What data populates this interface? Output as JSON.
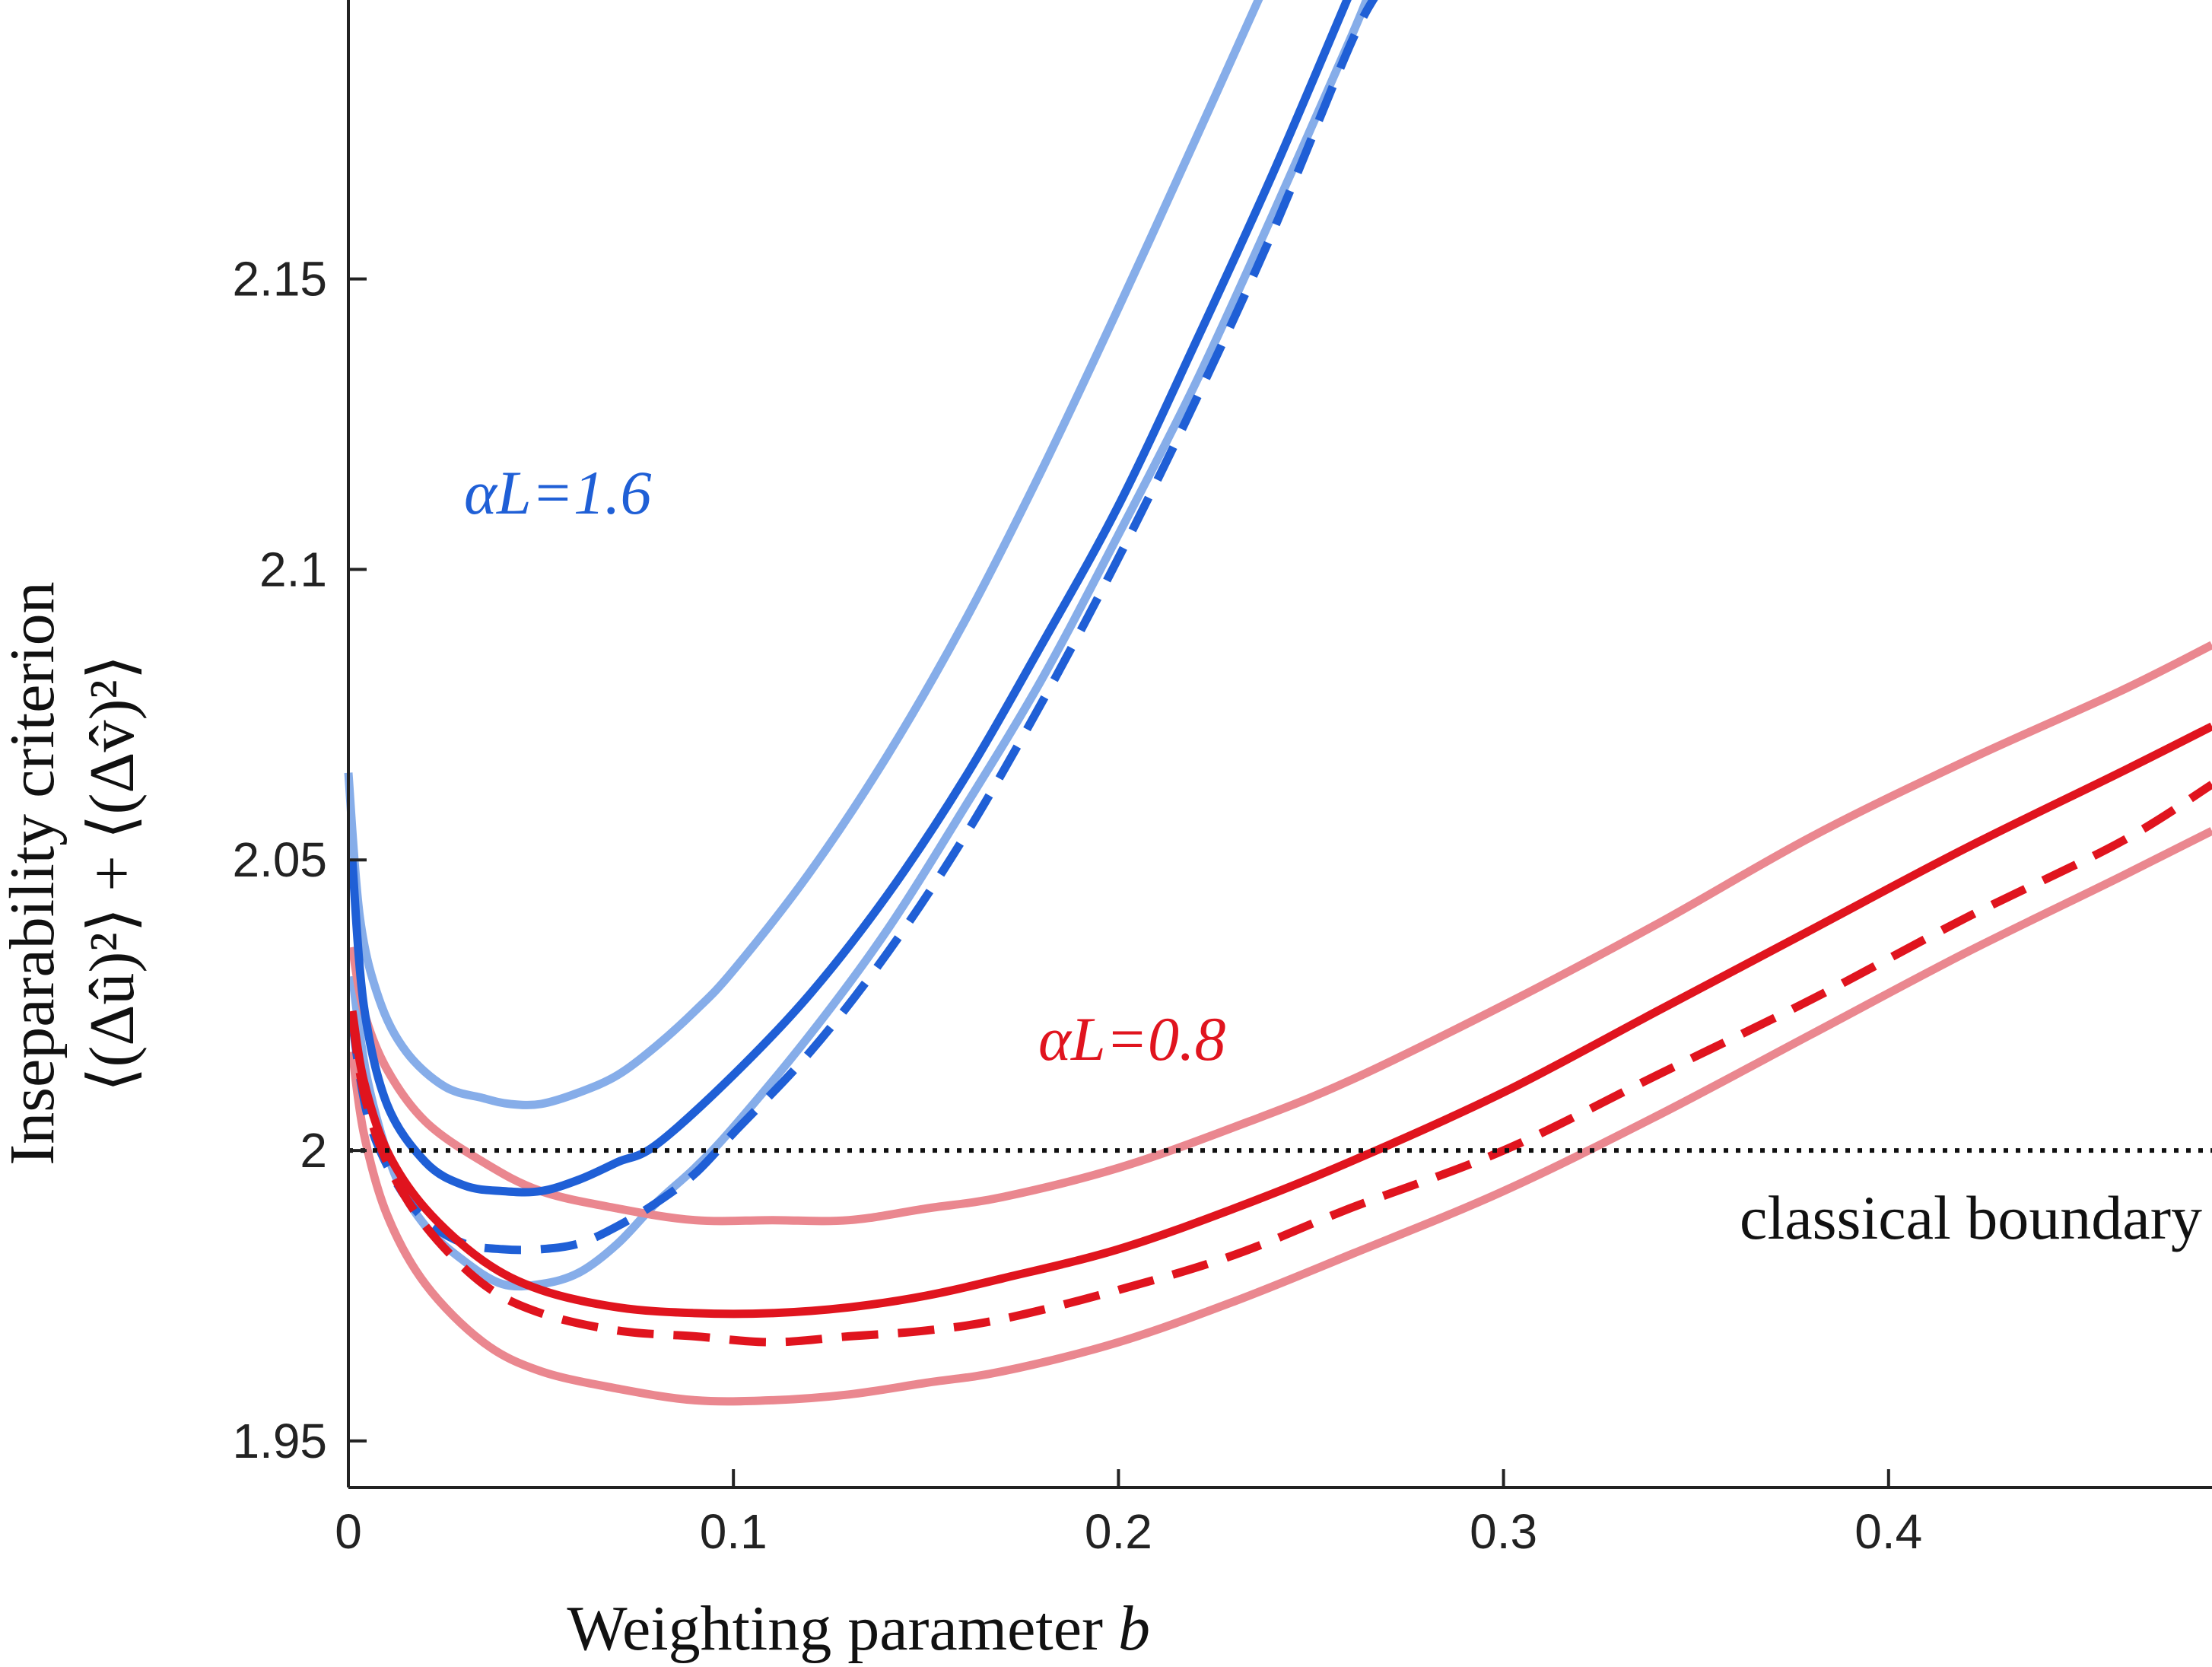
{
  "chart_data": {
    "type": "line",
    "xlabel": "Weighting parameter",
    "xlabel_var": "b",
    "ylabel_line1": "Inseparability criterion",
    "ylabel_line2": "⟨(Δû)²⟩ + ⟨(Δv̂)²⟩",
    "xlim": [
      0,
      0.484
    ],
    "ylim": [
      1.942,
      2.198
    ],
    "xticks": [
      0,
      0.1,
      0.2,
      0.3,
      0.4
    ],
    "xtick_labels": [
      "0",
      "0.1",
      "0.2",
      "0.3",
      "0.4"
    ],
    "yticks": [
      1.95,
      2.0,
      2.05,
      2.1,
      2.15
    ],
    "ytick_labels": [
      "1.95",
      "2",
      "2.05",
      "2.1",
      "2.15"
    ],
    "grid": false,
    "annotations": [
      {
        "text": "αL=1.6",
        "color": "#1f5fd6"
      },
      {
        "text": "αL=0.8",
        "color": "#e0141e"
      },
      {
        "text": "classical boundary",
        "color": "#111111"
      }
    ],
    "reference_line": {
      "y": 2.0,
      "style": "dotted",
      "color": "#111111"
    },
    "series": [
      {
        "group": "alphaL_1.6",
        "role": "upper",
        "color": "#86ade9",
        "dash": false,
        "points": [
          [
            0,
            2.065
          ],
          [
            0.003,
            2.04
          ],
          [
            0.008,
            2.026
          ],
          [
            0.015,
            2.017
          ],
          [
            0.025,
            2.011
          ],
          [
            0.035,
            2.009
          ],
          [
            0.042,
            2.008
          ],
          [
            0.05,
            2.008
          ],
          [
            0.06,
            2.01
          ],
          [
            0.07,
            2.013
          ],
          [
            0.08,
            2.018
          ],
          [
            0.09,
            2.024
          ],
          [
            0.1,
            2.031
          ],
          [
            0.12,
            2.048
          ],
          [
            0.14,
            2.068
          ],
          [
            0.16,
            2.091
          ],
          [
            0.18,
            2.117
          ],
          [
            0.2,
            2.145
          ],
          [
            0.22,
            2.174
          ],
          [
            0.237,
            2.199
          ]
        ]
      },
      {
        "group": "alphaL_1.6",
        "role": "center",
        "color": "#1f5fd6",
        "dash": false,
        "points": [
          [
            0.001,
            2.05
          ],
          [
            0.004,
            2.025
          ],
          [
            0.01,
            2.008
          ],
          [
            0.02,
            1.998
          ],
          [
            0.03,
            1.994
          ],
          [
            0.04,
            1.993
          ],
          [
            0.05,
            1.993
          ],
          [
            0.06,
            1.995
          ],
          [
            0.07,
            1.998
          ],
          [
            0.08,
            2.001
          ],
          [
            0.1,
            2.013
          ],
          [
            0.12,
            2.027
          ],
          [
            0.14,
            2.044
          ],
          [
            0.16,
            2.064
          ],
          [
            0.18,
            2.087
          ],
          [
            0.2,
            2.111
          ],
          [
            0.22,
            2.139
          ],
          [
            0.24,
            2.168
          ],
          [
            0.26,
            2.199
          ]
        ]
      },
      {
        "group": "alphaL_1.6",
        "role": "lower",
        "color": "#86ade9",
        "dash": false,
        "points": [
          [
            0.001,
            2.03
          ],
          [
            0.005,
            2.012
          ],
          [
            0.012,
            1.996
          ],
          [
            0.02,
            1.987
          ],
          [
            0.03,
            1.981
          ],
          [
            0.04,
            1.977
          ],
          [
            0.05,
            1.977
          ],
          [
            0.06,
            1.979
          ],
          [
            0.07,
            1.984
          ],
          [
            0.08,
            1.991
          ],
          [
            0.09,
            1.997
          ],
          [
            0.1,
            2.004
          ],
          [
            0.12,
            2.02
          ],
          [
            0.14,
            2.038
          ],
          [
            0.16,
            2.059
          ],
          [
            0.18,
            2.081
          ],
          [
            0.2,
            2.106
          ],
          [
            0.22,
            2.132
          ],
          [
            0.24,
            2.161
          ],
          [
            0.26,
            2.191
          ],
          [
            0.265,
            2.199
          ]
        ]
      },
      {
        "group": "alphaL_1.6",
        "role": "dashed",
        "color": "#1f5fd6",
        "dash": true,
        "points": [
          [
            0.001,
            2.022
          ],
          [
            0.005,
            2.006
          ],
          [
            0.012,
            1.995
          ],
          [
            0.02,
            1.988
          ],
          [
            0.03,
            1.984
          ],
          [
            0.04,
            1.983
          ],
          [
            0.05,
            1.983
          ],
          [
            0.06,
            1.984
          ],
          [
            0.07,
            1.987
          ],
          [
            0.08,
            1.991
          ],
          [
            0.09,
            1.996
          ],
          [
            0.1,
            2.003
          ],
          [
            0.12,
            2.017
          ],
          [
            0.14,
            2.034
          ],
          [
            0.16,
            2.054
          ],
          [
            0.18,
            2.077
          ],
          [
            0.2,
            2.102
          ],
          [
            0.22,
            2.129
          ],
          [
            0.24,
            2.158
          ],
          [
            0.26,
            2.19
          ],
          [
            0.267,
            2.199
          ]
        ]
      },
      {
        "group": "alphaL_0.8",
        "role": "upper",
        "color": "#ea878f",
        "dash": false,
        "points": [
          [
            0.001,
            2.035
          ],
          [
            0.004,
            2.024
          ],
          [
            0.01,
            2.014
          ],
          [
            0.02,
            2.005
          ],
          [
            0.035,
            1.998
          ],
          [
            0.05,
            1.993
          ],
          [
            0.07,
            1.99
          ],
          [
            0.09,
            1.988
          ],
          [
            0.11,
            1.988
          ],
          [
            0.13,
            1.988
          ],
          [
            0.15,
            1.99
          ],
          [
            0.17,
            1.992
          ],
          [
            0.2,
            1.997
          ],
          [
            0.23,
            2.004
          ],
          [
            0.26,
            2.012
          ],
          [
            0.3,
            2.025
          ],
          [
            0.34,
            2.039
          ],
          [
            0.38,
            2.054
          ],
          [
            0.42,
            2.067
          ],
          [
            0.46,
            2.079
          ],
          [
            0.484,
            2.087
          ]
        ]
      },
      {
        "group": "alphaL_0.8",
        "role": "center",
        "color": "#e0141e",
        "dash": false,
        "points": [
          [
            0.001,
            2.024
          ],
          [
            0.004,
            2.012
          ],
          [
            0.01,
            2.0
          ],
          [
            0.02,
            1.99
          ],
          [
            0.035,
            1.981
          ],
          [
            0.05,
            1.976
          ],
          [
            0.07,
            1.973
          ],
          [
            0.09,
            1.972
          ],
          [
            0.11,
            1.972
          ],
          [
            0.13,
            1.973
          ],
          [
            0.15,
            1.975
          ],
          [
            0.17,
            1.978
          ],
          [
            0.2,
            1.983
          ],
          [
            0.23,
            1.99
          ],
          [
            0.26,
            1.998
          ],
          [
            0.3,
            2.01
          ],
          [
            0.34,
            2.024
          ],
          [
            0.38,
            2.038
          ],
          [
            0.42,
            2.052
          ],
          [
            0.46,
            2.065
          ],
          [
            0.484,
            2.073
          ]
        ]
      },
      {
        "group": "alphaL_0.8",
        "role": "lower",
        "color": "#ea878f",
        "dash": false,
        "points": [
          [
            0.001,
            2.017
          ],
          [
            0.004,
            2.003
          ],
          [
            0.01,
            1.989
          ],
          [
            0.02,
            1.977
          ],
          [
            0.035,
            1.967
          ],
          [
            0.05,
            1.962
          ],
          [
            0.07,
            1.959
          ],
          [
            0.09,
            1.957
          ],
          [
            0.11,
            1.957
          ],
          [
            0.13,
            1.958
          ],
          [
            0.15,
            1.96
          ],
          [
            0.17,
            1.962
          ],
          [
            0.2,
            1.967
          ],
          [
            0.23,
            1.974
          ],
          [
            0.26,
            1.982
          ],
          [
            0.3,
            1.993
          ],
          [
            0.34,
            2.006
          ],
          [
            0.38,
            2.02
          ],
          [
            0.42,
            2.034
          ],
          [
            0.46,
            2.047
          ],
          [
            0.484,
            2.055
          ]
        ]
      },
      {
        "group": "alphaL_0.8",
        "role": "dashed",
        "color": "#e0141e",
        "dash": true,
        "points": [
          [
            0.001,
            2.023
          ],
          [
            0.004,
            2.01
          ],
          [
            0.01,
            1.998
          ],
          [
            0.02,
            1.987
          ],
          [
            0.035,
            1.977
          ],
          [
            0.05,
            1.972
          ],
          [
            0.07,
            1.969
          ],
          [
            0.09,
            1.968
          ],
          [
            0.11,
            1.967
          ],
          [
            0.13,
            1.968
          ],
          [
            0.15,
            1.969
          ],
          [
            0.17,
            1.971
          ],
          [
            0.2,
            1.976
          ],
          [
            0.23,
            1.982
          ],
          [
            0.26,
            1.99
          ],
          [
            0.3,
            2.0
          ],
          [
            0.34,
            2.013
          ],
          [
            0.38,
            2.026
          ],
          [
            0.42,
            2.04
          ],
          [
            0.46,
            2.053
          ],
          [
            0.484,
            2.063
          ]
        ]
      }
    ]
  }
}
